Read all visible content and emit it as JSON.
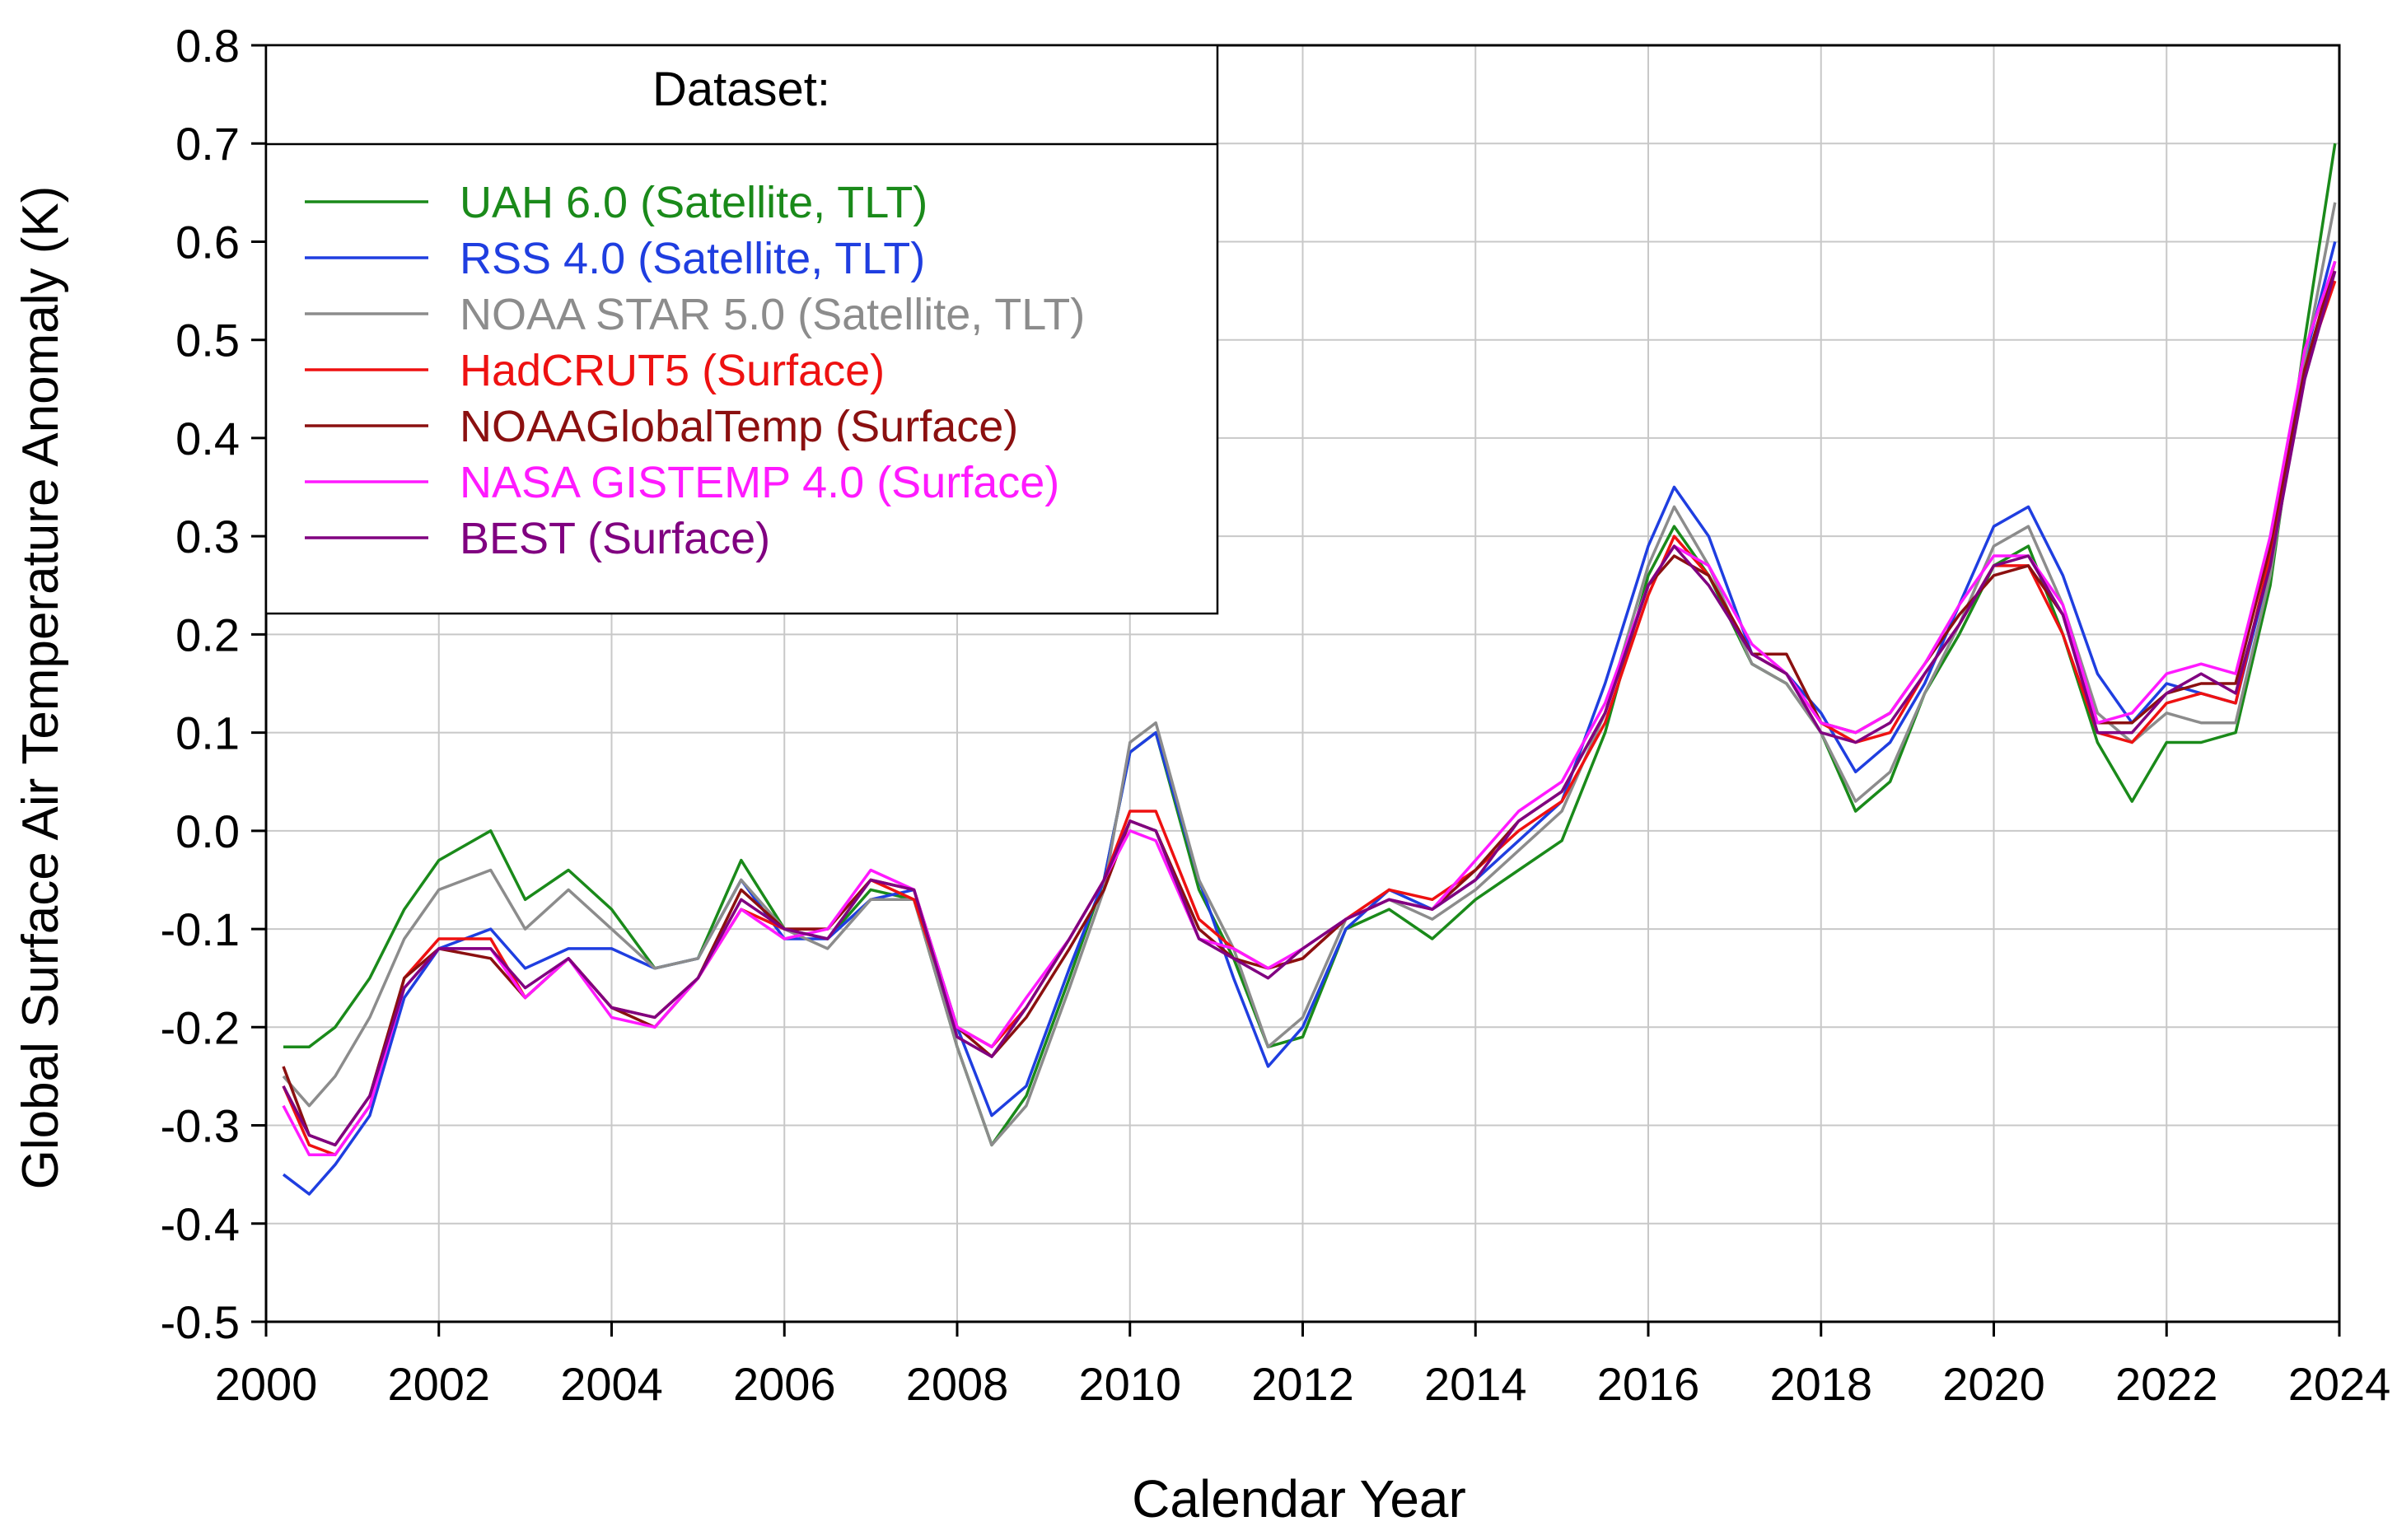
{
  "chart_data": {
    "type": "line",
    "title": "",
    "xlabel": "Calendar Year",
    "ylabel": "Global Surface Air Temperature Anomaly (K)",
    "xlim": [
      2000,
      2024
    ],
    "ylim": [
      -0.5,
      0.8
    ],
    "xticks": [
      2000,
      2002,
      2004,
      2006,
      2008,
      2010,
      2012,
      2014,
      2016,
      2018,
      2020,
      2022,
      2024
    ],
    "xtick_labels": [
      "2000",
      "2002",
      "2004",
      "2006",
      "2008",
      "2010",
      "2012",
      "2014",
      "2016",
      "2018",
      "2020",
      "2022",
      "2024"
    ],
    "yticks": [
      -0.5,
      -0.4,
      -0.3,
      -0.2,
      -0.1,
      0.0,
      0.1,
      0.2,
      0.3,
      0.4,
      0.5,
      0.6,
      0.7,
      0.8
    ],
    "ytick_labels": [
      "-0.5",
      "-0.4",
      "-0.3",
      "-0.2",
      "-0.1",
      "0.0",
      "0.1",
      "0.2",
      "0.3",
      "0.4",
      "0.5",
      "0.6",
      "0.7",
      "0.8"
    ],
    "grid": true,
    "legend": {
      "title": "Dataset:",
      "position": "top-left"
    },
    "x": [
      2000.2,
      2000.5,
      2000.8,
      2001.2,
      2001.6,
      2002.0,
      2002.6,
      2003.0,
      2003.5,
      2004.0,
      2004.5,
      2005.0,
      2005.5,
      2006.0,
      2006.5,
      2007.0,
      2007.5,
      2008.0,
      2008.4,
      2008.8,
      2009.3,
      2009.7,
      2010.0,
      2010.3,
      2010.8,
      2011.2,
      2011.6,
      2012.0,
      2012.5,
      2013.0,
      2013.5,
      2014.0,
      2014.5,
      2015.0,
      2015.5,
      2016.0,
      2016.3,
      2016.7,
      2017.2,
      2017.6,
      2018.0,
      2018.4,
      2018.8,
      2019.2,
      2019.6,
      2020.0,
      2020.4,
      2020.8,
      2021.2,
      2021.6,
      2022.0,
      2022.4,
      2022.8,
      2023.2,
      2023.6,
      2023.95
    ],
    "series": [
      {
        "name": "UAH 6.0 (Satellite, TLT)",
        "color": "#1a8a1a",
        "values": [
          -0.22,
          -0.22,
          -0.2,
          -0.15,
          -0.08,
          -0.03,
          0.0,
          -0.07,
          -0.04,
          -0.08,
          -0.14,
          -0.13,
          -0.03,
          -0.1,
          -0.11,
          -0.06,
          -0.07,
          -0.22,
          -0.32,
          -0.27,
          -0.15,
          -0.05,
          0.08,
          0.1,
          -0.06,
          -0.13,
          -0.22,
          -0.21,
          -0.1,
          -0.08,
          -0.11,
          -0.07,
          -0.04,
          -0.01,
          0.1,
          0.26,
          0.31,
          0.26,
          0.17,
          0.15,
          0.1,
          0.02,
          0.05,
          0.14,
          0.2,
          0.27,
          0.29,
          0.2,
          0.09,
          0.03,
          0.09,
          0.09,
          0.1,
          0.25,
          0.5,
          0.7
        ]
      },
      {
        "name": "RSS 4.0 (Satellite, TLT)",
        "color": "#1f3ee0",
        "values": [
          -0.35,
          -0.37,
          -0.34,
          -0.29,
          -0.17,
          -0.12,
          -0.1,
          -0.14,
          -0.12,
          -0.12,
          -0.14,
          -0.13,
          -0.05,
          -0.11,
          -0.11,
          -0.07,
          -0.06,
          -0.2,
          -0.29,
          -0.26,
          -0.14,
          -0.05,
          0.08,
          0.1,
          -0.05,
          -0.15,
          -0.24,
          -0.2,
          -0.1,
          -0.06,
          -0.08,
          -0.05,
          -0.01,
          0.03,
          0.15,
          0.29,
          0.35,
          0.3,
          0.18,
          0.16,
          0.12,
          0.06,
          0.09,
          0.15,
          0.23,
          0.31,
          0.33,
          0.26,
          0.16,
          0.11,
          0.15,
          0.14,
          0.13,
          0.27,
          0.48,
          0.6
        ]
      },
      {
        "name": "NOAA STAR 5.0 (Satellite, TLT)",
        "color": "#8c8c8c",
        "values": [
          -0.25,
          -0.28,
          -0.25,
          -0.19,
          -0.11,
          -0.06,
          -0.04,
          -0.1,
          -0.06,
          -0.1,
          -0.14,
          -0.13,
          -0.05,
          -0.1,
          -0.12,
          -0.07,
          -0.07,
          -0.22,
          -0.32,
          -0.28,
          -0.16,
          -0.06,
          0.09,
          0.11,
          -0.05,
          -0.12,
          -0.22,
          -0.19,
          -0.09,
          -0.07,
          -0.09,
          -0.06,
          -0.02,
          0.02,
          0.12,
          0.27,
          0.33,
          0.27,
          0.17,
          0.15,
          0.1,
          0.03,
          0.06,
          0.14,
          0.21,
          0.29,
          0.31,
          0.23,
          0.12,
          0.09,
          0.12,
          0.11,
          0.11,
          0.26,
          0.48,
          0.64
        ]
      },
      {
        "name": "HadCRUT5 (Surface)",
        "color": "#ee1111",
        "values": [
          -0.26,
          -0.32,
          -0.33,
          -0.28,
          -0.15,
          -0.11,
          -0.11,
          -0.17,
          -0.13,
          -0.18,
          -0.19,
          -0.15,
          -0.08,
          -0.1,
          -0.1,
          -0.05,
          -0.07,
          -0.2,
          -0.22,
          -0.18,
          -0.11,
          -0.05,
          0.02,
          0.02,
          -0.09,
          -0.12,
          -0.14,
          -0.13,
          -0.09,
          -0.06,
          -0.07,
          -0.04,
          0.0,
          0.03,
          0.11,
          0.24,
          0.3,
          0.26,
          0.18,
          0.16,
          0.11,
          0.09,
          0.1,
          0.16,
          0.21,
          0.27,
          0.27,
          0.2,
          0.1,
          0.09,
          0.13,
          0.14,
          0.13,
          0.28,
          0.47,
          0.56
        ]
      },
      {
        "name": "NOAAGlobalTemp (Surface)",
        "color": "#8b1010",
        "values": [
          -0.24,
          -0.31,
          -0.32,
          -0.27,
          -0.15,
          -0.12,
          -0.13,
          -0.17,
          -0.13,
          -0.18,
          -0.2,
          -0.15,
          -0.06,
          -0.1,
          -0.1,
          -0.05,
          -0.06,
          -0.2,
          -0.23,
          -0.19,
          -0.12,
          -0.06,
          0.01,
          0.0,
          -0.1,
          -0.13,
          -0.14,
          -0.13,
          -0.09,
          -0.07,
          -0.08,
          -0.04,
          0.01,
          0.04,
          0.12,
          0.25,
          0.28,
          0.26,
          0.18,
          0.18,
          0.11,
          0.1,
          0.12,
          0.17,
          0.22,
          0.26,
          0.27,
          0.22,
          0.11,
          0.11,
          0.14,
          0.15,
          0.15,
          0.29,
          0.47,
          0.58
        ]
      },
      {
        "name": "NASA GISTEMP 4.0 (Surface)",
        "color": "#ff1aff",
        "values": [
          -0.28,
          -0.33,
          -0.33,
          -0.28,
          -0.16,
          -0.12,
          -0.12,
          -0.17,
          -0.13,
          -0.19,
          -0.2,
          -0.15,
          -0.08,
          -0.11,
          -0.1,
          -0.04,
          -0.06,
          -0.2,
          -0.22,
          -0.17,
          -0.11,
          -0.05,
          0.0,
          -0.01,
          -0.11,
          -0.12,
          -0.14,
          -0.12,
          -0.09,
          -0.07,
          -0.08,
          -0.03,
          0.02,
          0.05,
          0.13,
          0.25,
          0.29,
          0.27,
          0.19,
          0.16,
          0.11,
          0.1,
          0.12,
          0.17,
          0.23,
          0.28,
          0.28,
          0.23,
          0.11,
          0.12,
          0.16,
          0.17,
          0.16,
          0.3,
          0.49,
          0.58
        ]
      },
      {
        "name": "BEST (Surface)",
        "color": "#800080",
        "values": [
          -0.26,
          -0.31,
          -0.32,
          -0.27,
          -0.16,
          -0.12,
          -0.12,
          -0.16,
          -0.13,
          -0.18,
          -0.19,
          -0.15,
          -0.07,
          -0.1,
          -0.11,
          -0.05,
          -0.06,
          -0.21,
          -0.23,
          -0.18,
          -0.11,
          -0.05,
          0.01,
          0.0,
          -0.11,
          -0.13,
          -0.15,
          -0.12,
          -0.09,
          -0.07,
          -0.08,
          -0.05,
          0.01,
          0.04,
          0.12,
          0.25,
          0.29,
          0.25,
          0.18,
          0.16,
          0.1,
          0.09,
          0.11,
          0.16,
          0.21,
          0.27,
          0.28,
          0.22,
          0.1,
          0.1,
          0.14,
          0.16,
          0.14,
          0.27,
          0.46,
          0.57
        ]
      }
    ]
  }
}
